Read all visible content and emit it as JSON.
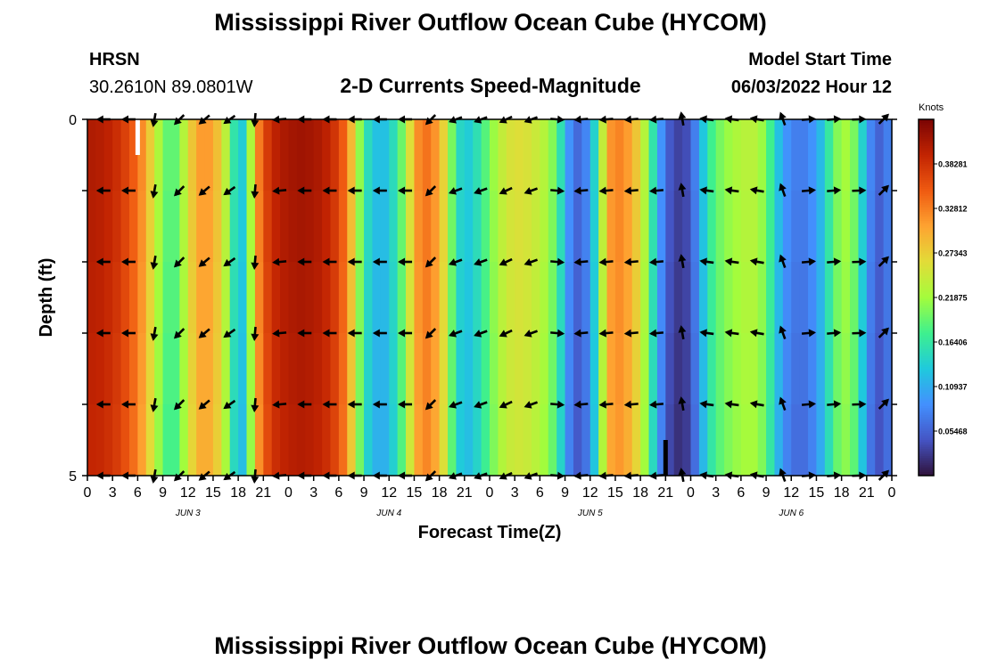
{
  "page": {
    "title": "Mississippi River Outflow Ocean Cube (HYCOM)",
    "station_name": "HRSN",
    "station_coords": "30.2610N  89.0801W",
    "subtitle": "2-D Currents Speed-Magnitude",
    "model_start_label": "Model Start Time",
    "model_start_value": "06/03/2022 Hour 12",
    "footer_title": "Mississippi River Outflow Ocean Cube (HYCOM)"
  },
  "chart_data": {
    "type": "heatmap",
    "xlabel": "Forecast Time(Z)",
    "ylabel": "Depth (ft)",
    "x_tick_labels": [
      "0",
      "3",
      "6",
      "9",
      "12",
      "15",
      "18",
      "21",
      "0",
      "3",
      "6",
      "9",
      "12",
      "15",
      "18",
      "21",
      "0",
      "3",
      "6",
      "9",
      "12",
      "15",
      "18",
      "21",
      "0",
      "3",
      "6",
      "9",
      "12",
      "15",
      "18",
      "21",
      "0"
    ],
    "date_labels": [
      "JUN 3",
      "JUN 4",
      "JUN 5",
      "JUN 6"
    ],
    "y_tick_labels": [
      "0",
      "5"
    ],
    "ylim": [
      0,
      5
    ],
    "depth_rows": 5,
    "colorbar": {
      "unit": "Knots",
      "tick_labels": [
        "0.38281",
        "0.32812",
        "0.27343",
        "0.21875",
        "0.16406",
        "0.10937",
        "0.05468"
      ],
      "min": 0.0,
      "max": 0.4375,
      "colors": [
        "#30123b",
        "#4454c4",
        "#4390fe",
        "#1fc9dd",
        "#3ef08e",
        "#a4fc3c",
        "#e2dc38",
        "#fea331",
        "#ef5a11",
        "#c22402",
        "#7a0403"
      ]
    },
    "speed_by_hour": [
      0.405,
      0.405,
      0.4,
      0.392,
      0.38,
      0.36,
      0.34,
      0.3,
      0.25,
      0.2,
      0.18,
      0.2,
      0.26,
      0.3,
      0.32,
      0.3,
      0.27,
      0.2,
      0.12,
      0.15,
      0.3,
      0.36,
      0.39,
      0.405,
      0.41,
      0.415,
      0.415,
      0.41,
      0.405,
      0.39,
      0.37,
      0.33,
      0.25,
      0.17,
      0.13,
      0.12,
      0.13,
      0.17,
      0.22,
      0.3,
      0.34,
      0.33,
      0.3,
      0.24,
      0.16,
      0.13,
      0.14,
      0.17,
      0.2,
      0.23,
      0.25,
      0.26,
      0.26,
      0.25,
      0.24,
      0.22,
      0.19,
      0.12,
      0.06,
      0.06,
      0.1,
      0.18,
      0.3,
      0.33,
      0.32,
      0.3,
      0.26,
      0.2,
      0.12,
      0.06,
      0.035,
      0.03,
      0.05,
      0.1,
      0.16,
      0.19,
      0.21,
      0.22,
      0.23,
      0.235,
      0.23,
      0.2,
      0.15,
      0.1,
      0.08,
      0.07,
      0.08,
      0.1,
      0.14,
      0.19,
      0.22,
      0.22,
      0.18,
      0.1,
      0.06,
      0.05,
      0.1
    ],
    "arrow_times_h": [
      2,
      5,
      8,
      11,
      14,
      17,
      20,
      23,
      26,
      29,
      32,
      35,
      38,
      41,
      44,
      47,
      50,
      53,
      56,
      59,
      62,
      65,
      68,
      71,
      74,
      77,
      80,
      83,
      86,
      89,
      92,
      95
    ],
    "arrow_dirs_deg": [
      270,
      270,
      190,
      225,
      230,
      235,
      185,
      265,
      270,
      270,
      270,
      270,
      270,
      225,
      250,
      250,
      245,
      250,
      95,
      265,
      265,
      265,
      265,
      350,
      278,
      278,
      280,
      340,
      85,
      85,
      88,
      45
    ],
    "missing_data_markers": [
      {
        "time_h": 6,
        "depth_ft": [
          0,
          0.5
        ],
        "color": "#ffffff"
      },
      {
        "time_h": 69,
        "depth_ft": [
          4.5,
          5
        ],
        "color": "#000000"
      }
    ]
  }
}
